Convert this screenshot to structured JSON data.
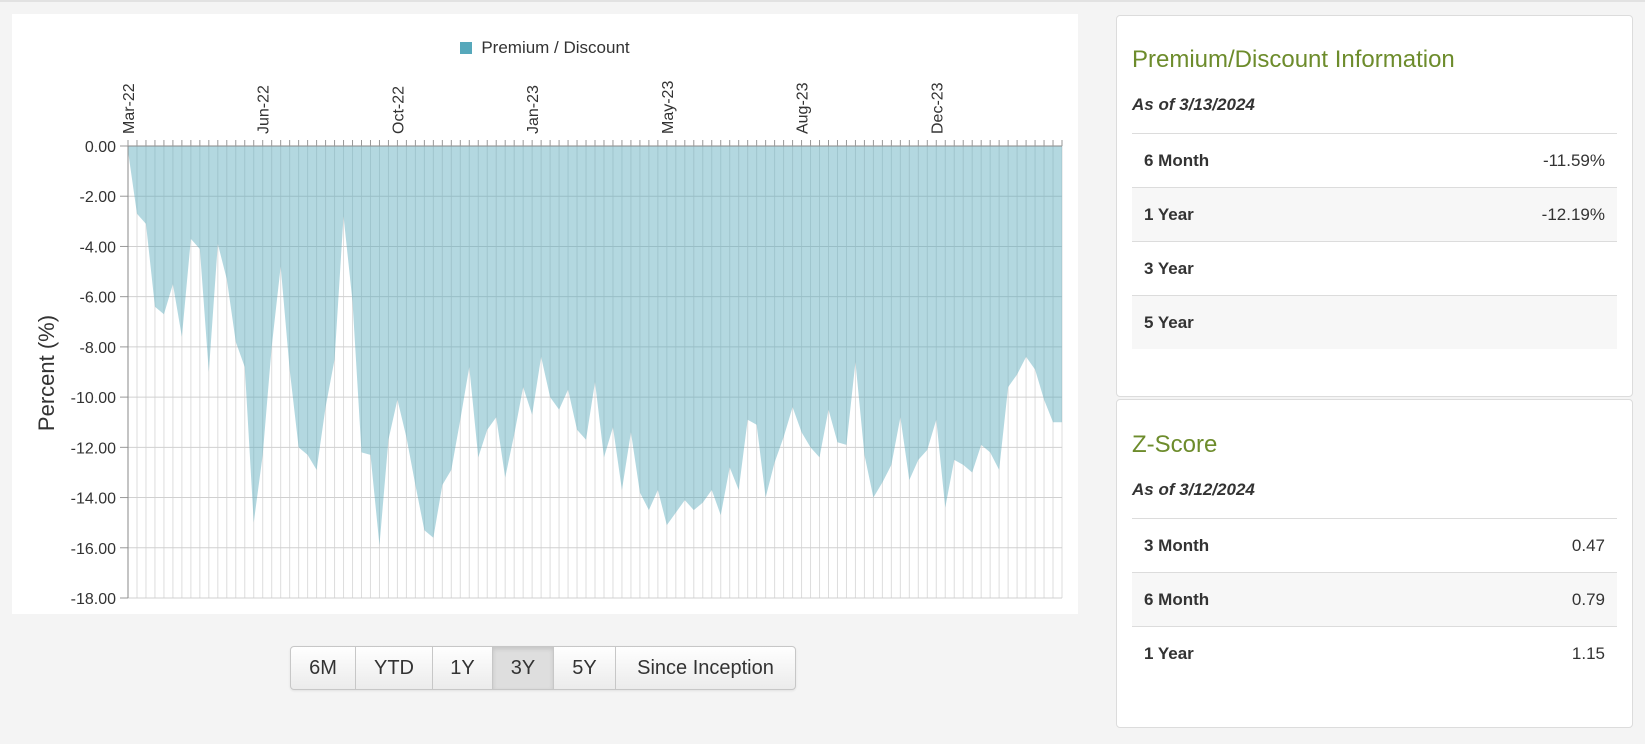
{
  "chart_data": {
    "type": "area",
    "legend": [
      "Premium / Discount"
    ],
    "legend_placement": "top-center",
    "ylabel": "Percent (%)",
    "xlabel": "",
    "ylim": [
      -18,
      0
    ],
    "yticks": [
      "0.00",
      "-2.00",
      "-4.00",
      "-6.00",
      "-8.00",
      "-10.00",
      "-12.00",
      "-14.00",
      "-16.00",
      "-18.00"
    ],
    "xtick_labels": [
      {
        "label": "Mar-22",
        "i": 0
      },
      {
        "label": "Jun-22",
        "i": 15
      },
      {
        "label": "Oct-22",
        "i": 30
      },
      {
        "label": "Jan-23",
        "i": 45
      },
      {
        "label": "May-23",
        "i": 60
      },
      {
        "label": "Aug-23",
        "i": 75
      },
      {
        "label": "Dec-23",
        "i": 90
      }
    ],
    "grid": true,
    "color": "#56a8bb",
    "series": [
      {
        "name": "Premium / Discount",
        "values": [
          -0.2,
          -2.7,
          -3.1,
          -6.4,
          -6.7,
          -5.5,
          -7.6,
          -3.7,
          -4.1,
          -9.0,
          -3.9,
          -5.3,
          -7.8,
          -8.8,
          -15.0,
          -12.3,
          -8.0,
          -4.8,
          -8.9,
          -12.0,
          -12.3,
          -12.9,
          -10.4,
          -8.5,
          -2.8,
          -6.2,
          -12.2,
          -12.3,
          -15.9,
          -11.7,
          -10.1,
          -11.6,
          -13.5,
          -15.3,
          -15.6,
          -13.5,
          -12.9,
          -10.9,
          -8.8,
          -12.4,
          -11.3,
          -10.8,
          -13.2,
          -11.5,
          -9.6,
          -10.7,
          -8.4,
          -10.0,
          -10.5,
          -9.7,
          -11.3,
          -11.7,
          -9.4,
          -12.4,
          -11.2,
          -13.7,
          -11.4,
          -13.8,
          -14.5,
          -13.7,
          -15.1,
          -14.6,
          -14.1,
          -14.5,
          -14.2,
          -13.7,
          -14.7,
          -12.8,
          -13.7,
          -10.9,
          -11.1,
          -14.0,
          -12.6,
          -11.6,
          -10.4,
          -11.4,
          -12.0,
          -12.4,
          -10.5,
          -11.8,
          -11.9,
          -8.6,
          -12.3,
          -14.0,
          -13.4,
          -12.7,
          -10.8,
          -13.3,
          -12.5,
          -12.1,
          -10.9,
          -14.4,
          -12.5,
          -12.7,
          -13.0,
          -11.9,
          -12.2,
          -12.9,
          -9.6,
          -9.1,
          -8.4,
          -8.9,
          -10.1,
          -11.0,
          -11.0
        ]
      }
    ]
  },
  "controls": {
    "range_buttons": [
      "6M",
      "YTD",
      "1Y",
      "3Y",
      "5Y",
      "Since Inception"
    ],
    "active": "3Y"
  },
  "premium_discount_info": {
    "title": "Premium/Discount Information",
    "as_of": "As of 3/13/2024",
    "rows": [
      {
        "label": "6 Month",
        "value": "-11.59%"
      },
      {
        "label": "1 Year",
        "value": "-12.19%"
      },
      {
        "label": "3 Year",
        "value": ""
      },
      {
        "label": "5 Year",
        "value": ""
      }
    ]
  },
  "z_score": {
    "title": "Z-Score",
    "as_of": "As of 3/12/2024",
    "rows": [
      {
        "label": "3 Month",
        "value": "0.47"
      },
      {
        "label": "6 Month",
        "value": "0.79"
      },
      {
        "label": "1 Year",
        "value": "1.15"
      }
    ]
  }
}
